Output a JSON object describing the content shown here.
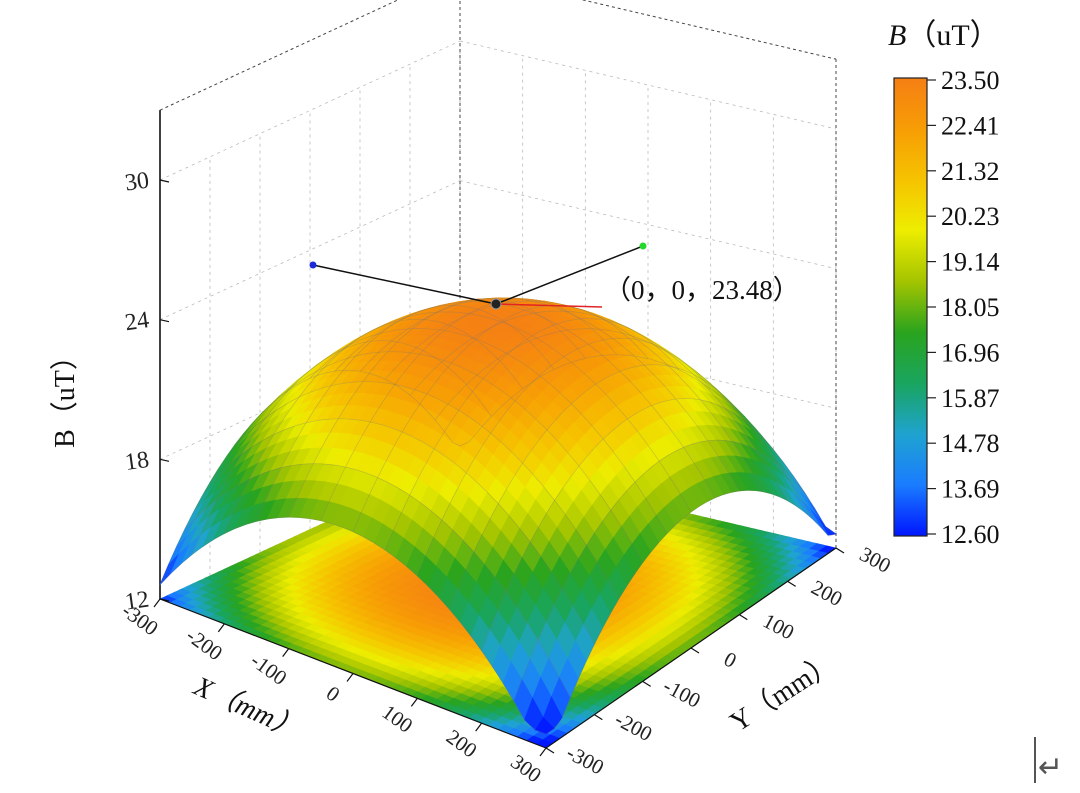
{
  "chart_data": {
    "type": "surface3d",
    "z_axis": {
      "label": "B（uT）",
      "ticks": [
        "12",
        "18",
        "24",
        "30"
      ],
      "range": [
        12,
        30
      ]
    },
    "x_axis": {
      "label": "X（mm）",
      "ticks": [
        "-300",
        "-200",
        "-100",
        "0",
        "100",
        "200",
        "300"
      ],
      "range": [
        -300,
        300
      ]
    },
    "y_axis": {
      "label": "Y（mm）",
      "ticks": [
        "-300",
        "-200",
        "-100",
        "0",
        "100",
        "200",
        "300"
      ],
      "range": [
        -300,
        300
      ]
    },
    "surface": {
      "description_values": {
        "center": {
          "x": 0,
          "y": 0,
          "z": 23.48
        },
        "corner_xminus_yminus": 13.5,
        "corner_xplus_yplus": 13.5,
        "corner_xminus_yplus": 14.0,
        "corner_xplus_yminus": 12.6,
        "min": 12.6,
        "max": 23.48
      },
      "projection": "contour-filled base plane"
    },
    "annotation": {
      "text": "（0，0，23.48）",
      "x": 0,
      "y": 0,
      "z": 23.48
    },
    "colorbar": {
      "title_italic": "B",
      "title_unit": "（uT）",
      "ticks": [
        "23.50",
        "22.41",
        "21.32",
        "20.23",
        "19.14",
        "18.05",
        "16.96",
        "15.87",
        "14.78",
        "13.69",
        "12.60"
      ],
      "range": [
        12.6,
        23.5
      ],
      "colors": [
        "#0016ff",
        "#1a7cff",
        "#1fa3d0",
        "#19a55f",
        "#2aa41e",
        "#a4c400",
        "#eded00",
        "#f6c300",
        "#f79d05",
        "#f57f14"
      ]
    },
    "grid": true
  },
  "corner_mark": "↵"
}
